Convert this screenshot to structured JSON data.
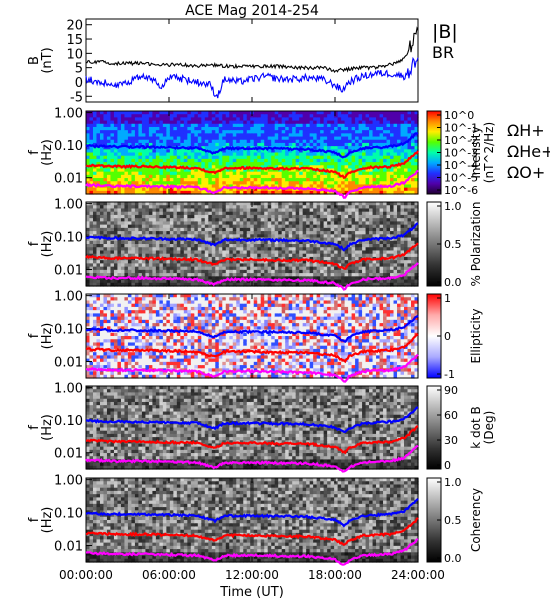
{
  "chart_data": {
    "title": "ACE Mag 2014-254",
    "xlabel": "Time (UT)",
    "x_tick_labels": [
      "00:00:00",
      "06:00:00",
      "12:00:00",
      "18:00:00",
      "24:00:00"
    ],
    "x_range_hours": [
      0,
      24
    ],
    "panels": [
      {
        "type": "line",
        "ylabel_lines": [
          "B",
          "(nT)"
        ],
        "yticks": [
          "20",
          "15",
          "10",
          "5",
          "0",
          "-5"
        ],
        "ylim": [
          -7,
          22
        ],
        "series": [
          {
            "name": "|B|",
            "color": "#000000",
            "x": [
              0,
              1,
              2,
              3,
              4,
              5,
              6,
              7,
              8,
              9,
              10,
              11,
              12,
              13,
              14,
              15,
              16,
              17,
              18,
              19,
              20,
              21,
              22,
              23,
              24
            ],
            "y": [
              7,
              7,
              6.5,
              6.5,
              6.5,
              6,
              6,
              6,
              5.5,
              6,
              5.5,
              5.5,
              5.5,
              5.5,
              5.5,
              5,
              5,
              5,
              4,
              4.5,
              5,
              5,
              6,
              8,
              18
            ]
          },
          {
            "name": "B_R",
            "color": "#0000ff",
            "x": [
              0,
              1,
              2,
              3,
              4,
              5,
              5.5,
              6,
              7,
              8,
              9,
              9.3,
              9.5,
              10,
              11,
              12,
              13,
              14,
              15,
              16,
              17,
              18,
              18.5,
              19,
              20,
              21,
              22,
              23,
              24
            ],
            "y": [
              1,
              0,
              -1,
              0,
              2,
              1,
              -2,
              2,
              1,
              0,
              -1,
              -4,
              -5,
              1,
              0,
              1,
              2,
              1,
              1,
              1.5,
              1,
              -1,
              -3,
              0,
              2,
              3,
              3,
              2,
              8
            ]
          }
        ]
      },
      {
        "type": "heatmap",
        "name": "Intensity",
        "colorbar_ticks": [
          "10^0",
          "10^-1",
          "10^-2",
          "10^-3",
          "10^-4",
          "10^-5",
          "10^-6"
        ],
        "colorbar_label_lines": [
          "Intensity",
          "(nT^2/Hz)"
        ],
        "colormap": "rainbow",
        "yticks": [
          "1.00",
          "0.10",
          "0.01"
        ],
        "ylabel_lines": [
          "f",
          "(Hz)"
        ]
      },
      {
        "type": "heatmap",
        "name": "% Polarization",
        "colorbar_ticks": [
          "1.0",
          "0.5",
          "0.0"
        ],
        "colorbar_label_lines": [
          "% Polarization"
        ],
        "colormap": "gray",
        "yticks": [
          "1.00",
          "0.10",
          "0.01"
        ],
        "ylabel_lines": [
          "f",
          "(Hz)"
        ]
      },
      {
        "type": "heatmap",
        "name": "Ellipticity",
        "colorbar_ticks": [
          "1",
          "0",
          "-1"
        ],
        "colorbar_label_lines": [
          "Ellipticity"
        ],
        "colormap": "bwr",
        "yticks": [
          "1.00",
          "0.10",
          "0.01"
        ],
        "ylabel_lines": [
          "f",
          "(Hz)"
        ]
      },
      {
        "type": "heatmap",
        "name": "k dot B",
        "colorbar_ticks": [
          "90",
          "60",
          "30",
          "0"
        ],
        "colorbar_label_lines": [
          "k dot B",
          "(Deg)"
        ],
        "colormap": "gray",
        "yticks": [
          "1.00",
          "0.10",
          "0.01"
        ],
        "ylabel_lines": [
          "f",
          "(Hz)"
        ]
      },
      {
        "type": "heatmap",
        "name": "Coherency",
        "colorbar_ticks": [
          "1.0",
          "0.5",
          "0.0"
        ],
        "colorbar_label_lines": [
          "Coherency"
        ],
        "colormap": "gray",
        "yticks": [
          "1.00",
          "0.10",
          "0.01"
        ],
        "ylabel_lines": [
          "f",
          "(Hz)"
        ]
      }
    ],
    "gyro_lines": {
      "ylim_log10": [
        -2.5,
        0.05
      ],
      "series": [
        {
          "name": "H+",
          "color": "#0000ff",
          "x": [
            0,
            2,
            4,
            6,
            8,
            9.3,
            10,
            12,
            14,
            16,
            18,
            18.7,
            19,
            20,
            22,
            23,
            24
          ],
          "y_hz": [
            0.095,
            0.09,
            0.088,
            0.085,
            0.082,
            0.055,
            0.08,
            0.08,
            0.078,
            0.075,
            0.06,
            0.04,
            0.055,
            0.08,
            0.09,
            0.11,
            0.25
          ]
        },
        {
          "name": "He+",
          "color": "#ff0000",
          "x": [
            0,
            2,
            4,
            6,
            8,
            9.3,
            10,
            12,
            14,
            16,
            18,
            18.7,
            19,
            20,
            22,
            23,
            24
          ],
          "y_hz": [
            0.024,
            0.022,
            0.022,
            0.021,
            0.02,
            0.014,
            0.02,
            0.02,
            0.019,
            0.019,
            0.015,
            0.01,
            0.014,
            0.02,
            0.022,
            0.028,
            0.065
          ]
        },
        {
          "name": "O+",
          "color": "#ff00ff",
          "x": [
            0,
            2,
            4,
            6,
            8,
            9.3,
            10,
            12,
            14,
            16,
            18,
            18.7,
            19,
            20,
            22,
            23,
            24
          ],
          "y_hz": [
            0.006,
            0.0055,
            0.0055,
            0.0053,
            0.005,
            0.0035,
            0.005,
            0.005,
            0.0048,
            0.0047,
            0.0038,
            0.0025,
            0.0035,
            0.005,
            0.0055,
            0.007,
            0.016
          ]
        }
      ],
      "labels": [
        "ΩH+",
        "ΩHe+",
        "ΩO+"
      ]
    },
    "legend_labels": {
      "b_mag": "|B|",
      "b_r": "BR"
    }
  },
  "colors": {
    "h": "#0000ff",
    "he": "#ff0000",
    "o": "#ff00ff",
    "b": "#000000"
  }
}
